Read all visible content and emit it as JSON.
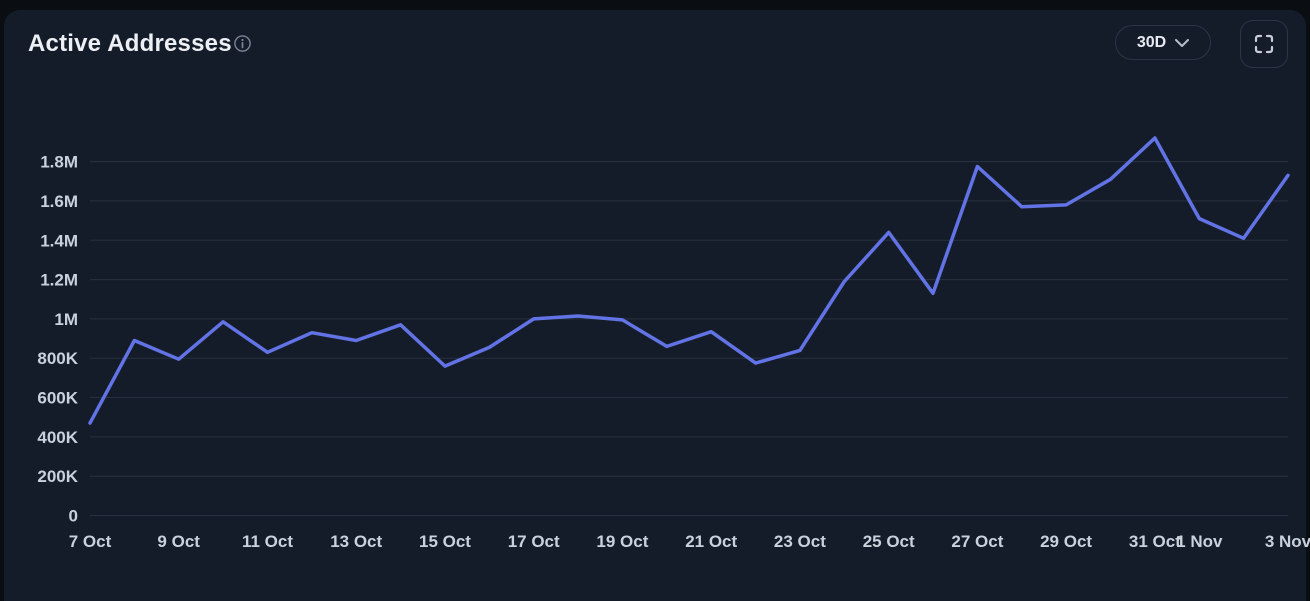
{
  "header": {
    "title": "Active Addresses",
    "range_selector": {
      "label": "30D"
    }
  },
  "colors": {
    "page_background": "#0a0d12",
    "card_background": "#151c29",
    "line": "#6273e6",
    "grid": "rgba(148,170,205,0.14)",
    "title_text": "#eceff4",
    "axis_text": "#c9d1dc",
    "control_border": "#2b3546",
    "icon": "#c7cdd8"
  },
  "icons": {
    "info": "info-icon",
    "chevron": "chevron-down-icon",
    "fullscreen": "fullscreen-icon"
  },
  "chart_data": {
    "type": "line",
    "title": "Active Addresses",
    "xlabel": "",
    "ylabel": "",
    "legend": "none",
    "grid": "horizontal",
    "ylim": [
      0,
      2000000
    ],
    "x": [
      "7 Oct",
      "8 Oct",
      "9 Oct",
      "10 Oct",
      "11 Oct",
      "12 Oct",
      "13 Oct",
      "14 Oct",
      "15 Oct",
      "16 Oct",
      "17 Oct",
      "18 Oct",
      "19 Oct",
      "20 Oct",
      "21 Oct",
      "22 Oct",
      "23 Oct",
      "24 Oct",
      "25 Oct",
      "26 Oct",
      "27 Oct",
      "28 Oct",
      "29 Oct",
      "30 Oct",
      "31 Oct",
      "1 Nov",
      "2 Nov",
      "3 Nov"
    ],
    "values": [
      470000,
      890000,
      795000,
      985000,
      830000,
      930000,
      890000,
      970000,
      760000,
      855000,
      1000000,
      1015000,
      995000,
      860000,
      935000,
      775000,
      840000,
      1190000,
      1440000,
      1130000,
      1775000,
      1570000,
      1580000,
      1710000,
      1920000,
      1510000,
      1410000,
      1730000
    ],
    "y_ticks": [
      {
        "value": 0,
        "label": "0"
      },
      {
        "value": 200000,
        "label": "200K"
      },
      {
        "value": 400000,
        "label": "400K"
      },
      {
        "value": 600000,
        "label": "600K"
      },
      {
        "value": 800000,
        "label": "800K"
      },
      {
        "value": 1000000,
        "label": "1M"
      },
      {
        "value": 1200000,
        "label": "1.2M"
      },
      {
        "value": 1400000,
        "label": "1.4M"
      },
      {
        "value": 1600000,
        "label": "1.6M"
      },
      {
        "value": 1800000,
        "label": "1.8M"
      }
    ],
    "x_ticks": [
      {
        "index": 0,
        "label": "7 Oct"
      },
      {
        "index": 2,
        "label": "9 Oct"
      },
      {
        "index": 4,
        "label": "11 Oct"
      },
      {
        "index": 6,
        "label": "13 Oct"
      },
      {
        "index": 8,
        "label": "15 Oct"
      },
      {
        "index": 10,
        "label": "17 Oct"
      },
      {
        "index": 12,
        "label": "19 Oct"
      },
      {
        "index": 14,
        "label": "21 Oct"
      },
      {
        "index": 16,
        "label": "23 Oct"
      },
      {
        "index": 18,
        "label": "25 Oct"
      },
      {
        "index": 20,
        "label": "27 Oct"
      },
      {
        "index": 22,
        "label": "29 Oct"
      },
      {
        "index": 24,
        "label": "31 Oct"
      },
      {
        "index": 25,
        "label": "1 Nov"
      },
      {
        "index": 27,
        "label": "3 Nov"
      }
    ]
  }
}
